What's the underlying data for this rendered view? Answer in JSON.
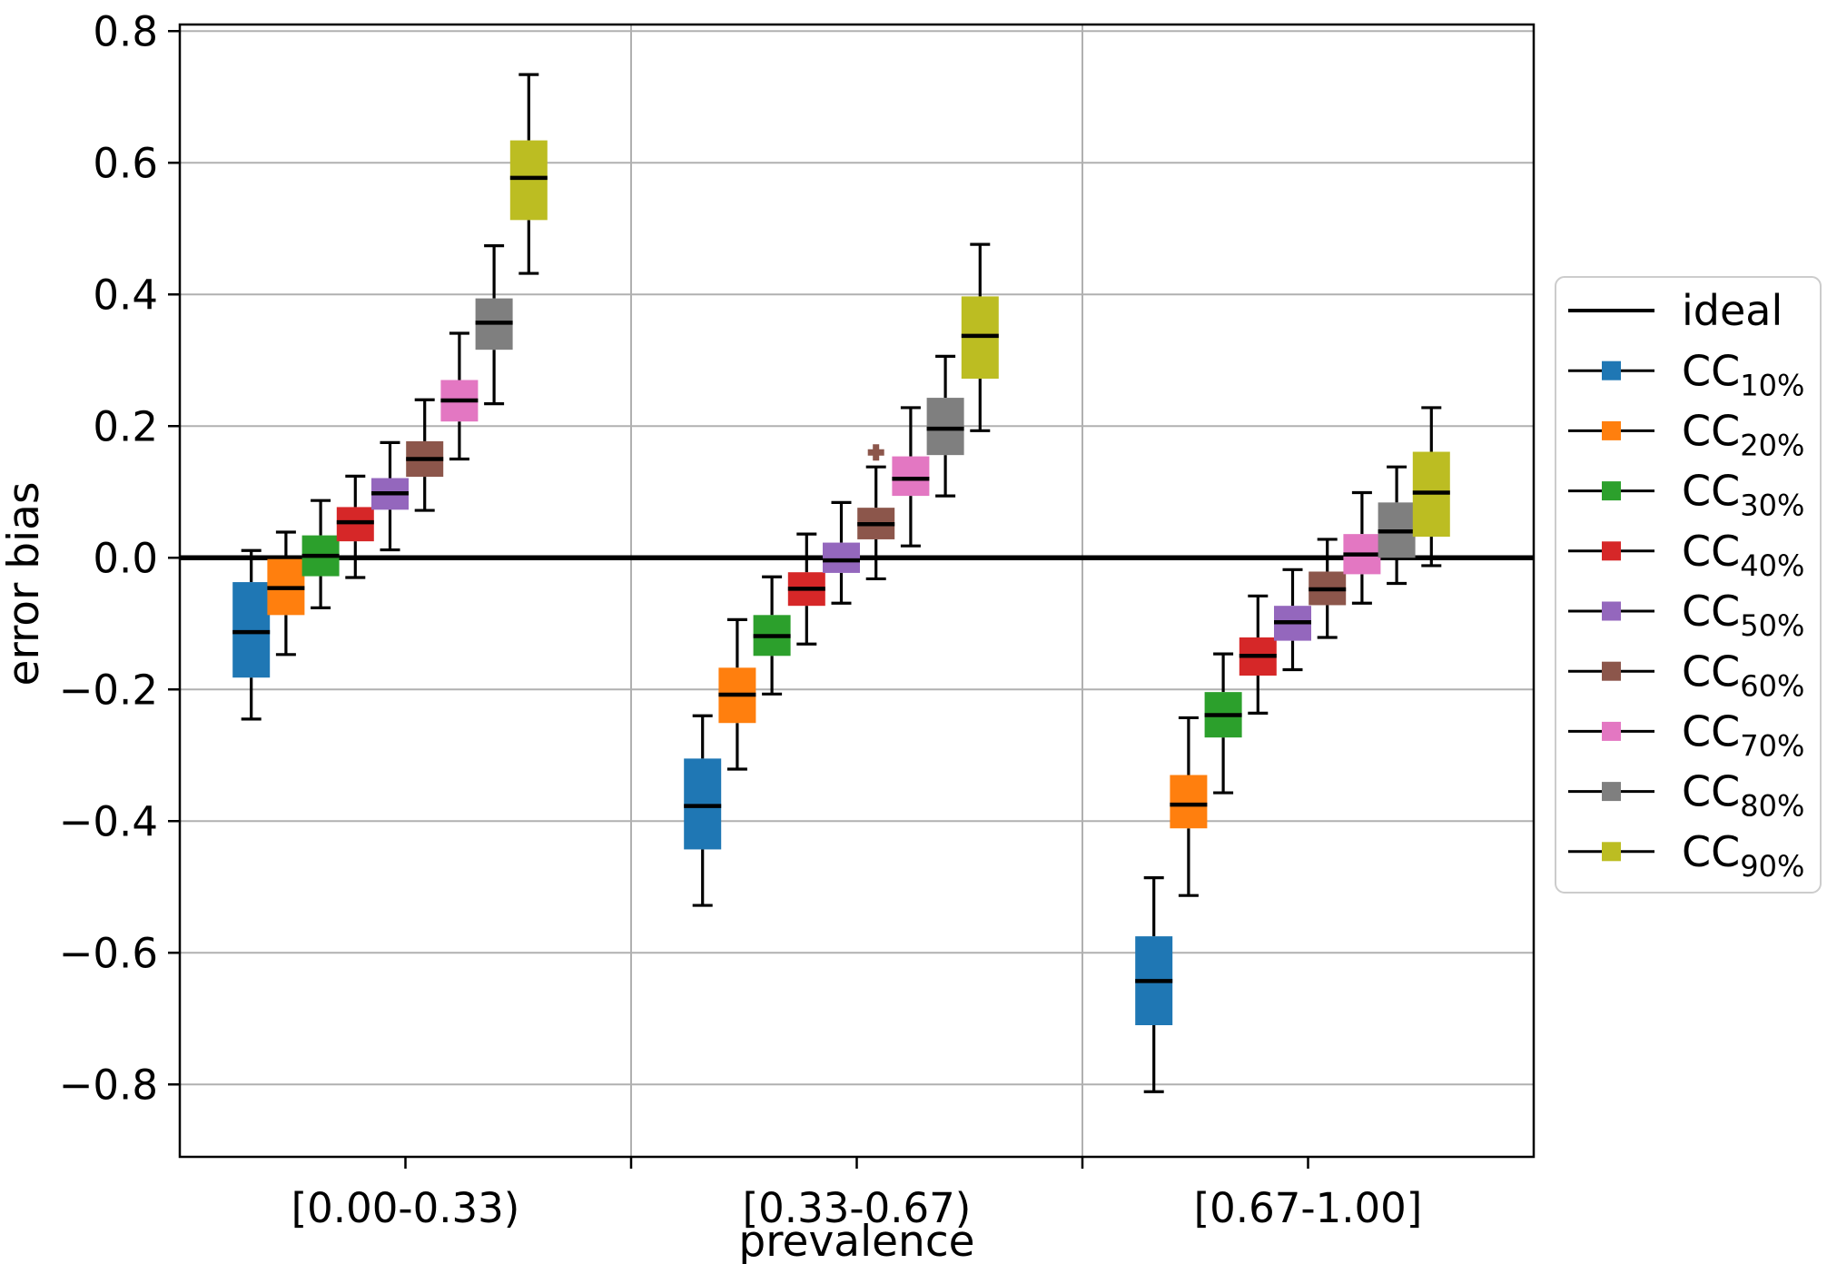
{
  "chart_data": {
    "type": "boxplot",
    "title": "",
    "xlabel": "prevalence",
    "ylabel": "error bias",
    "categories": [
      "[0.00-0.33)",
      "[0.33-0.67)",
      "[0.67-1.00]"
    ],
    "ylim": [
      -0.91,
      0.81
    ],
    "yticks": [
      -0.8,
      -0.6,
      -0.4,
      -0.2,
      0.0,
      0.2,
      0.4,
      0.6,
      0.8
    ],
    "grid": true,
    "grid_color": "#b0b0b0",
    "ideal_value": 0.0,
    "ideal_color": "#000000",
    "legend": {
      "position": "right",
      "items": [
        {
          "label": "ideal",
          "subscript": "",
          "type": "line"
        },
        {
          "label": "CC",
          "subscript": "10%",
          "type": "box"
        },
        {
          "label": "CC",
          "subscript": "20%",
          "type": "box"
        },
        {
          "label": "CC",
          "subscript": "30%",
          "type": "box"
        },
        {
          "label": "CC",
          "subscript": "40%",
          "type": "box"
        },
        {
          "label": "CC",
          "subscript": "50%",
          "type": "box"
        },
        {
          "label": "CC",
          "subscript": "60%",
          "type": "box"
        },
        {
          "label": "CC",
          "subscript": "70%",
          "type": "box"
        },
        {
          "label": "CC",
          "subscript": "80%",
          "type": "box"
        },
        {
          "label": "CC",
          "subscript": "90%",
          "type": "box"
        }
      ]
    },
    "series": [
      {
        "name": "CC10%",
        "label": "CC",
        "subscript": "10%",
        "color": "#1f77b4",
        "boxes": [
          {
            "whislo": -0.245,
            "q1": -0.182,
            "med": -0.113,
            "q3": -0.037,
            "whishi": 0.011,
            "fliers": []
          },
          {
            "whislo": -0.528,
            "q1": -0.443,
            "med": -0.377,
            "q3": -0.305,
            "whishi": -0.24,
            "fliers": []
          },
          {
            "whislo": -0.811,
            "q1": -0.71,
            "med": -0.643,
            "q3": -0.575,
            "whishi": -0.486,
            "fliers": []
          }
        ]
      },
      {
        "name": "CC20%",
        "label": "CC",
        "subscript": "20%",
        "color": "#ff7f0e",
        "boxes": [
          {
            "whislo": -0.147,
            "q1": -0.087,
            "med": -0.046,
            "q3": -0.002,
            "whishi": 0.039,
            "fliers": []
          },
          {
            "whislo": -0.321,
            "q1": -0.251,
            "med": -0.208,
            "q3": -0.167,
            "whishi": -0.094,
            "fliers": []
          },
          {
            "whislo": -0.513,
            "q1": -0.411,
            "med": -0.375,
            "q3": -0.33,
            "whishi": -0.243,
            "fliers": []
          }
        ]
      },
      {
        "name": "CC30%",
        "label": "CC",
        "subscript": "30%",
        "color": "#2ca02c",
        "boxes": [
          {
            "whislo": -0.076,
            "q1": -0.028,
            "med": 0.003,
            "q3": 0.034,
            "whishi": 0.087,
            "fliers": []
          },
          {
            "whislo": -0.207,
            "q1": -0.149,
            "med": -0.119,
            "q3": -0.087,
            "whishi": -0.029,
            "fliers": []
          },
          {
            "whislo": -0.357,
            "q1": -0.273,
            "med": -0.239,
            "q3": -0.204,
            "whishi": -0.146,
            "fliers": []
          }
        ]
      },
      {
        "name": "CC40%",
        "label": "CC",
        "subscript": "40%",
        "color": "#d62728",
        "boxes": [
          {
            "whislo": -0.03,
            "q1": 0.025,
            "med": 0.054,
            "q3": 0.077,
            "whishi": 0.124,
            "fliers": []
          },
          {
            "whislo": -0.131,
            "q1": -0.073,
            "med": -0.047,
            "q3": -0.022,
            "whishi": 0.036,
            "fliers": []
          },
          {
            "whislo": -0.236,
            "q1": -0.179,
            "med": -0.149,
            "q3": -0.121,
            "whishi": -0.058,
            "fliers": []
          }
        ]
      },
      {
        "name": "CC50%",
        "label": "CC",
        "subscript": "50%",
        "color": "#9467bd",
        "boxes": [
          {
            "whislo": 0.012,
            "q1": 0.073,
            "med": 0.098,
            "q3": 0.121,
            "whishi": 0.175,
            "fliers": []
          },
          {
            "whislo": -0.069,
            "q1": -0.023,
            "med": -0.004,
            "q3": 0.023,
            "whishi": 0.084,
            "fliers": []
          },
          {
            "whislo": -0.17,
            "q1": -0.126,
            "med": -0.098,
            "q3": -0.073,
            "whishi": -0.018,
            "fliers": []
          }
        ]
      },
      {
        "name": "CC60%",
        "label": "CC",
        "subscript": "60%",
        "color": "#8c564b",
        "boxes": [
          {
            "whislo": 0.072,
            "q1": 0.123,
            "med": 0.15,
            "q3": 0.177,
            "whishi": 0.24,
            "fliers": []
          },
          {
            "whislo": -0.032,
            "q1": 0.028,
            "med": 0.051,
            "q3": 0.076,
            "whishi": 0.138,
            "fliers": [
              0.16
            ]
          },
          {
            "whislo": -0.121,
            "q1": -0.072,
            "med": -0.048,
            "q3": -0.021,
            "whishi": 0.028,
            "fliers": []
          }
        ]
      },
      {
        "name": "CC70%",
        "label": "CC",
        "subscript": "70%",
        "color": "#e377c2",
        "boxes": [
          {
            "whislo": 0.15,
            "q1": 0.207,
            "med": 0.239,
            "q3": 0.27,
            "whishi": 0.341,
            "fliers": []
          },
          {
            "whislo": 0.018,
            "q1": 0.094,
            "med": 0.12,
            "q3": 0.154,
            "whishi": 0.228,
            "fliers": []
          },
          {
            "whislo": -0.069,
            "q1": -0.025,
            "med": 0.005,
            "q3": 0.036,
            "whishi": 0.099,
            "fliers": []
          }
        ]
      },
      {
        "name": "CC80%",
        "label": "CC",
        "subscript": "80%",
        "color": "#7f7f7f",
        "boxes": [
          {
            "whislo": 0.234,
            "q1": 0.316,
            "med": 0.357,
            "q3": 0.394,
            "whishi": 0.474,
            "fliers": []
          },
          {
            "whislo": 0.094,
            "q1": 0.156,
            "med": 0.196,
            "q3": 0.243,
            "whishi": 0.306,
            "fliers": []
          },
          {
            "whislo": -0.039,
            "q1": 0.0,
            "med": 0.04,
            "q3": 0.084,
            "whishi": 0.138,
            "fliers": []
          }
        ]
      },
      {
        "name": "CC90%",
        "label": "CC",
        "subscript": "90%",
        "color": "#bcbd22",
        "boxes": [
          {
            "whislo": 0.432,
            "q1": 0.513,
            "med": 0.577,
            "q3": 0.634,
            "whishi": 0.734,
            "fliers": []
          },
          {
            "whislo": 0.193,
            "q1": 0.272,
            "med": 0.337,
            "q3": 0.397,
            "whishi": 0.476,
            "fliers": []
          },
          {
            "whislo": -0.012,
            "q1": 0.032,
            "med": 0.099,
            "q3": 0.161,
            "whishi": 0.228,
            "fliers": []
          }
        ]
      }
    ]
  }
}
